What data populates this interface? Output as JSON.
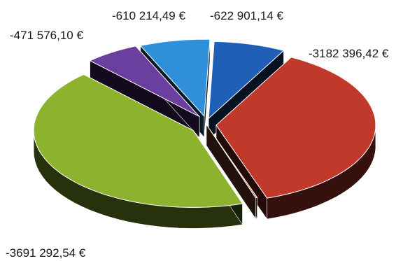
{
  "chart_data": {
    "type": "pie",
    "style": "3d-exploded",
    "title": "",
    "slices": [
      {
        "label": "-622 901,14 €",
        "value": -622901.14,
        "color": "#1f5fb5"
      },
      {
        "label": "-3182 396,42 €",
        "value": -3182396.42,
        "color": "#c0392b"
      },
      {
        "label": "",
        "value": -14000.0,
        "color": "#b5603a"
      },
      {
        "label": "-3691 292,54 €",
        "value": -3691292.54,
        "color": "#8db32e"
      },
      {
        "label": "-471 576,10 €",
        "value": -471576.1,
        "color": "#6a3fa0"
      },
      {
        "label": "-610 214,49 €",
        "value": -610214.49,
        "color": "#2f8fd8"
      }
    ],
    "legend": "none"
  }
}
